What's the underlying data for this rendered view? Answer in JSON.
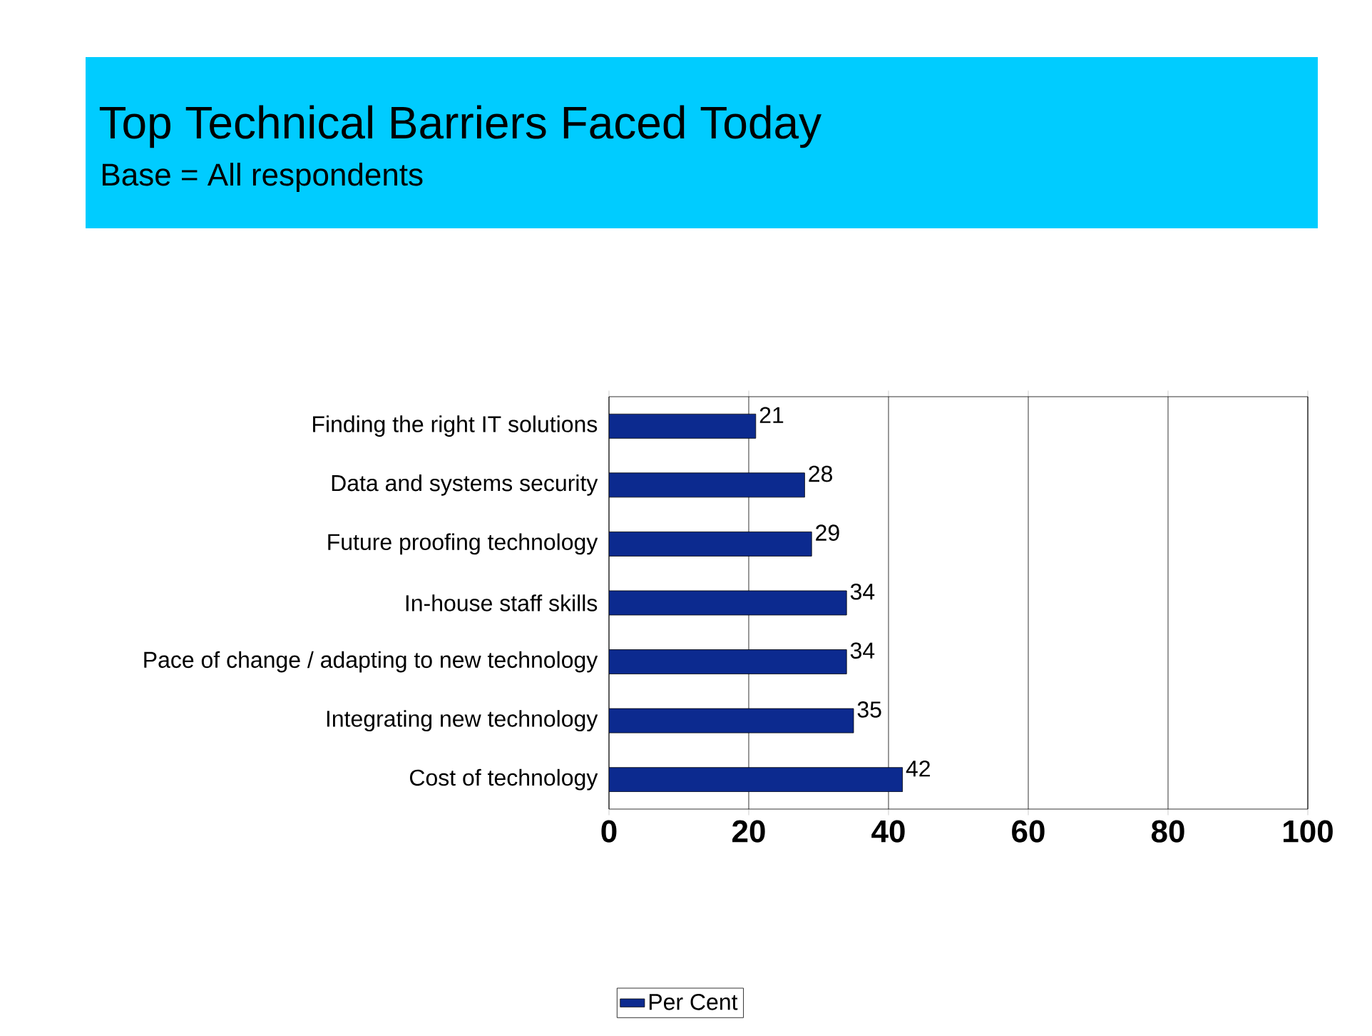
{
  "chart_data": {
    "type": "bar",
    "orientation": "horizontal",
    "title": "Top Technical Barriers Faced Today",
    "subtitle": "Base = All respondents",
    "categories": [
      "Finding the right IT solutions",
      "Data and systems security",
      "Future proofing technology",
      "In-house staff skills",
      "Pace of change / adapting to new technology",
      "Integrating new technology",
      "Cost of technology"
    ],
    "series": [
      {
        "name": "Per Cent",
        "color": "#0c2a8f",
        "values": [
          21,
          28,
          29,
          34,
          34,
          35,
          42
        ]
      }
    ],
    "xlim": [
      0,
      100
    ],
    "xticks": [
      0,
      20,
      40,
      60,
      80,
      100
    ],
    "grid": "x",
    "legend": "bottom",
    "data_labels": true
  }
}
